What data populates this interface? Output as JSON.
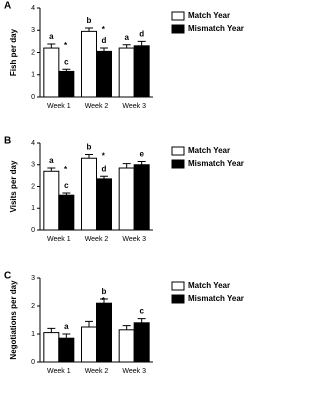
{
  "chart_data": [
    {
      "type": "bar",
      "panel": "A",
      "y_label": "Fish per day",
      "categories": [
        "Week 1",
        "Week 2",
        "Week 3"
      ],
      "series": [
        {
          "name": "Match Year",
          "color": "#ffffff",
          "values": [
            2.2,
            2.95,
            2.2
          ],
          "errors": [
            0.18,
            0.15,
            0.15
          ],
          "annotations": [
            "a",
            "b",
            "a"
          ]
        },
        {
          "name": "Mismatch Year",
          "color": "#000000",
          "values": [
            1.15,
            2.05,
            2.3
          ],
          "errors": [
            0.1,
            0.15,
            0.2
          ],
          "annotations": [
            "c",
            "d",
            "d"
          ]
        }
      ],
      "significance": [
        "*",
        "*",
        null
      ],
      "ylim": [
        0,
        4
      ],
      "yticks": [
        0,
        1,
        2,
        3,
        4
      ],
      "legend": "upper right"
    },
    {
      "type": "bar",
      "panel": "B",
      "y_label": "Visits per day",
      "categories": [
        "Week 1",
        "Week 2",
        "Week 3"
      ],
      "series": [
        {
          "name": "Match Year",
          "color": "#ffffff",
          "values": [
            2.7,
            3.3,
            2.85
          ],
          "errors": [
            0.15,
            0.17,
            0.2
          ],
          "annotations": [
            "a",
            "b",
            null
          ]
        },
        {
          "name": "Mismatch Year",
          "color": "#000000",
          "values": [
            1.6,
            2.35,
            3.0
          ],
          "errors": [
            0.1,
            0.12,
            0.15
          ],
          "annotations": [
            "c",
            "d",
            "e"
          ]
        }
      ],
      "significance": [
        "*",
        "*",
        null
      ],
      "ylim": [
        0,
        4
      ],
      "yticks": [
        0,
        1,
        2,
        3,
        4
      ],
      "legend": "upper right"
    },
    {
      "type": "bar",
      "panel": "C",
      "y_label": "Negotiations per day",
      "categories": [
        "Week 1",
        "Week 2",
        "Week 3"
      ],
      "series": [
        {
          "name": "Match Year",
          "color": "#ffffff",
          "values": [
            1.05,
            1.25,
            1.15
          ],
          "errors": [
            0.15,
            0.2,
            0.15
          ],
          "annotations": [
            null,
            null,
            null
          ]
        },
        {
          "name": "Mismatch Year",
          "color": "#000000",
          "values": [
            0.85,
            2.1,
            1.4
          ],
          "errors": [
            0.15,
            0.15,
            0.15
          ],
          "annotations": [
            "a",
            "b",
            "c"
          ]
        }
      ],
      "significance": [
        null,
        "*",
        null
      ],
      "ylim": [
        0,
        3
      ],
      "yticks": [
        0,
        1,
        2,
        3
      ],
      "legend": "upper right"
    }
  ]
}
